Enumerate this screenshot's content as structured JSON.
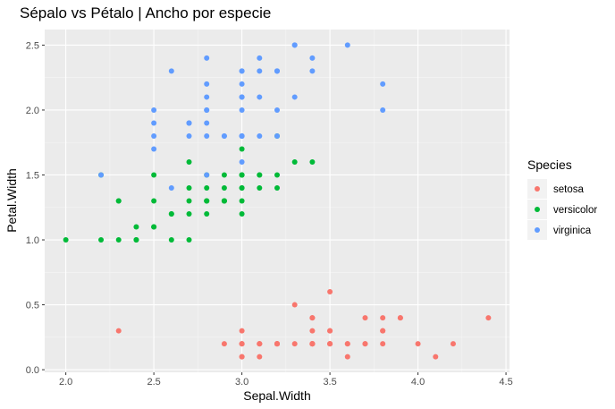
{
  "chart_data": {
    "type": "scatter",
    "title": "Sépalo vs Pétalo | Ancho por especie",
    "xlabel": "Sepal.Width",
    "ylabel": "Petal.Width",
    "xlim": [
      1.88,
      4.52
    ],
    "ylim": [
      -0.02,
      2.62
    ],
    "x_ticks": [
      2.0,
      2.5,
      3.0,
      3.5,
      4.0,
      4.5
    ],
    "x_tick_labels": [
      "2.0",
      "2.5",
      "3.0",
      "3.5",
      "4.0",
      "4.5"
    ],
    "y_ticks": [
      0.0,
      0.5,
      1.0,
      1.5,
      2.0,
      2.5
    ],
    "y_tick_labels": [
      "0.0",
      "0.5",
      "1.0",
      "1.5",
      "2.0",
      "2.5"
    ],
    "grid": true,
    "legend": {
      "title": "Species",
      "placement": "right"
    },
    "series": [
      {
        "name": "setosa",
        "color": "#F8766D",
        "points": [
          [
            3.5,
            0.2
          ],
          [
            3.0,
            0.2
          ],
          [
            3.2,
            0.2
          ],
          [
            3.1,
            0.2
          ],
          [
            3.6,
            0.2
          ],
          [
            3.9,
            0.4
          ],
          [
            3.4,
            0.3
          ],
          [
            3.4,
            0.2
          ],
          [
            2.9,
            0.2
          ],
          [
            3.1,
            0.1
          ],
          [
            3.7,
            0.2
          ],
          [
            3.4,
            0.2
          ],
          [
            3.0,
            0.1
          ],
          [
            3.0,
            0.1
          ],
          [
            4.0,
            0.2
          ],
          [
            4.4,
            0.4
          ],
          [
            3.9,
            0.4
          ],
          [
            3.5,
            0.3
          ],
          [
            3.8,
            0.3
          ],
          [
            3.8,
            0.3
          ],
          [
            3.4,
            0.2
          ],
          [
            3.7,
            0.4
          ],
          [
            3.6,
            0.2
          ],
          [
            3.3,
            0.5
          ],
          [
            3.4,
            0.2
          ],
          [
            3.0,
            0.2
          ],
          [
            3.4,
            0.4
          ],
          [
            3.5,
            0.2
          ],
          [
            3.4,
            0.2
          ],
          [
            3.2,
            0.2
          ],
          [
            3.1,
            0.2
          ],
          [
            3.4,
            0.4
          ],
          [
            4.1,
            0.1
          ],
          [
            4.2,
            0.2
          ],
          [
            3.1,
            0.2
          ],
          [
            3.2,
            0.2
          ],
          [
            3.5,
            0.2
          ],
          [
            3.6,
            0.1
          ],
          [
            3.0,
            0.2
          ],
          [
            3.4,
            0.2
          ],
          [
            3.5,
            0.3
          ],
          [
            2.3,
            0.3
          ],
          [
            3.2,
            0.2
          ],
          [
            3.5,
            0.6
          ],
          [
            3.8,
            0.4
          ],
          [
            3.0,
            0.3
          ],
          [
            3.8,
            0.2
          ],
          [
            3.2,
            0.2
          ],
          [
            3.7,
            0.2
          ],
          [
            3.3,
            0.2
          ]
        ]
      },
      {
        "name": "versicolor",
        "color": "#00BA38",
        "points": [
          [
            3.2,
            1.4
          ],
          [
            3.2,
            1.5
          ],
          [
            3.1,
            1.5
          ],
          [
            2.3,
            1.3
          ],
          [
            2.8,
            1.5
          ],
          [
            2.8,
            1.3
          ],
          [
            3.3,
            1.6
          ],
          [
            2.4,
            1.0
          ],
          [
            2.9,
            1.3
          ],
          [
            2.7,
            1.4
          ],
          [
            2.0,
            1.0
          ],
          [
            3.0,
            1.5
          ],
          [
            2.2,
            1.0
          ],
          [
            2.9,
            1.4
          ],
          [
            2.9,
            1.3
          ],
          [
            3.1,
            1.4
          ],
          [
            3.0,
            1.5
          ],
          [
            2.7,
            1.0
          ],
          [
            2.2,
            1.5
          ],
          [
            2.5,
            1.1
          ],
          [
            3.2,
            1.8
          ],
          [
            2.8,
            1.3
          ],
          [
            2.5,
            1.5
          ],
          [
            2.8,
            1.2
          ],
          [
            2.9,
            1.3
          ],
          [
            3.0,
            1.4
          ],
          [
            2.8,
            1.4
          ],
          [
            3.0,
            1.7
          ],
          [
            2.9,
            1.5
          ],
          [
            2.6,
            1.0
          ],
          [
            2.4,
            1.1
          ],
          [
            2.4,
            1.0
          ],
          [
            2.7,
            1.2
          ],
          [
            2.7,
            1.6
          ],
          [
            3.0,
            1.5
          ],
          [
            3.4,
            1.6
          ],
          [
            3.1,
            1.5
          ],
          [
            2.3,
            1.3
          ],
          [
            3.0,
            1.3
          ],
          [
            2.5,
            1.3
          ],
          [
            2.6,
            1.2
          ],
          [
            3.0,
            1.4
          ],
          [
            2.6,
            1.2
          ],
          [
            2.3,
            1.0
          ],
          [
            2.7,
            1.3
          ],
          [
            3.0,
            1.2
          ],
          [
            2.9,
            1.3
          ],
          [
            2.9,
            1.3
          ],
          [
            2.5,
            1.1
          ],
          [
            2.8,
            1.3
          ]
        ]
      },
      {
        "name": "virginica",
        "color": "#619CFF",
        "points": [
          [
            3.3,
            2.5
          ],
          [
            2.7,
            1.9
          ],
          [
            3.0,
            2.1
          ],
          [
            2.9,
            1.8
          ],
          [
            3.0,
            2.2
          ],
          [
            3.0,
            2.1
          ],
          [
            2.5,
            1.7
          ],
          [
            2.9,
            1.8
          ],
          [
            2.5,
            1.8
          ],
          [
            3.6,
            2.5
          ],
          [
            3.2,
            2.0
          ],
          [
            2.7,
            1.9
          ],
          [
            3.0,
            2.1
          ],
          [
            2.5,
            2.0
          ],
          [
            2.8,
            2.4
          ],
          [
            3.2,
            2.3
          ],
          [
            3.0,
            1.8
          ],
          [
            3.8,
            2.2
          ],
          [
            2.6,
            2.3
          ],
          [
            2.2,
            1.5
          ],
          [
            3.2,
            2.3
          ],
          [
            2.8,
            2.0
          ],
          [
            2.8,
            2.0
          ],
          [
            2.7,
            1.8
          ],
          [
            3.3,
            2.1
          ],
          [
            3.2,
            1.8
          ],
          [
            2.8,
            1.8
          ],
          [
            3.0,
            1.8
          ],
          [
            2.8,
            2.1
          ],
          [
            3.0,
            1.6
          ],
          [
            2.8,
            1.9
          ],
          [
            3.8,
            2.0
          ],
          [
            2.8,
            2.2
          ],
          [
            2.8,
            1.5
          ],
          [
            2.6,
            1.4
          ],
          [
            3.0,
            2.3
          ],
          [
            3.4,
            2.4
          ],
          [
            3.1,
            1.8
          ],
          [
            3.0,
            1.8
          ],
          [
            3.1,
            2.1
          ],
          [
            3.1,
            2.4
          ],
          [
            3.1,
            2.3
          ],
          [
            2.7,
            1.9
          ],
          [
            3.2,
            2.3
          ],
          [
            3.3,
            2.5
          ],
          [
            3.0,
            2.3
          ],
          [
            2.5,
            1.9
          ],
          [
            3.0,
            2.0
          ],
          [
            3.4,
            2.3
          ],
          [
            3.0,
            1.8
          ]
        ]
      }
    ]
  }
}
